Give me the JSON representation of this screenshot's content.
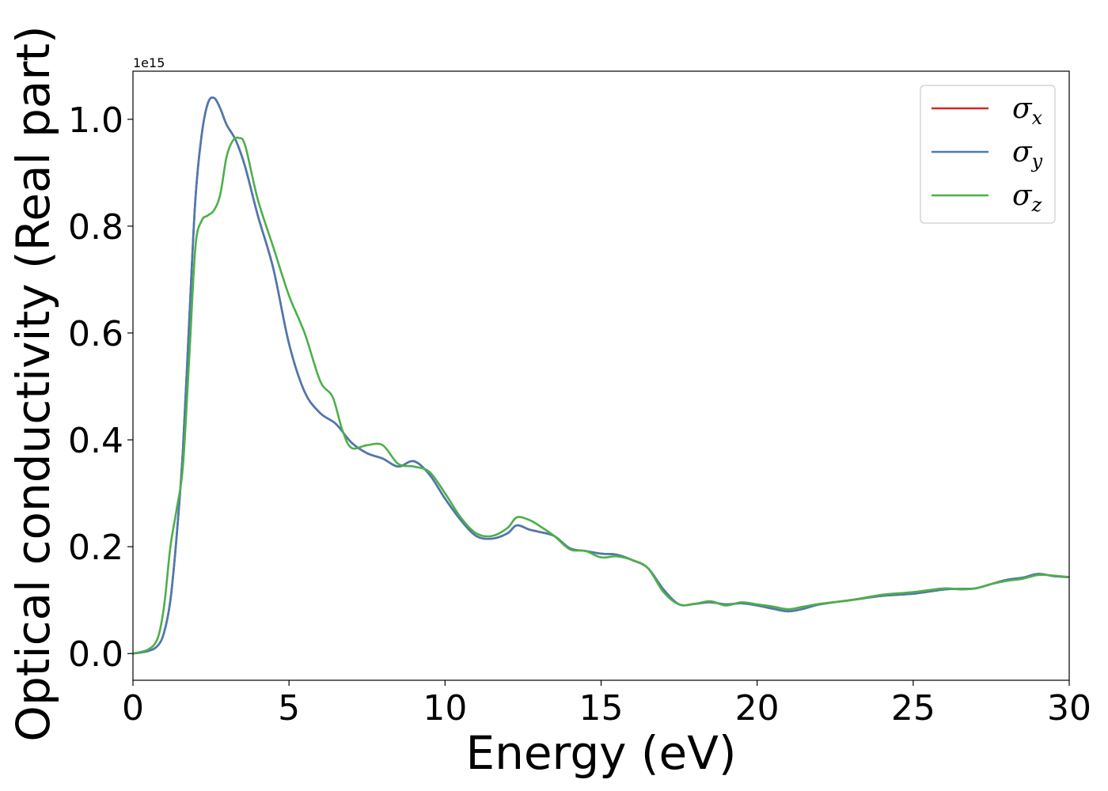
{
  "chart_data": {
    "type": "line",
    "xlabel": "Energy (eV)",
    "ylabel": "Optical conductivity (Real part)",
    "y_offset_label": "1e15",
    "xlim": [
      0,
      30
    ],
    "ylim": [
      -0.05,
      1.09
    ],
    "xticks": [
      0,
      5,
      10,
      15,
      20,
      25,
      30
    ],
    "xtick_labels": [
      "0",
      "5",
      "10",
      "15",
      "20",
      "25",
      "30"
    ],
    "yticks": [
      0.0,
      0.2,
      0.4,
      0.6,
      0.8,
      1.0
    ],
    "ytick_labels": [
      "0.0",
      "0.2",
      "0.4",
      "0.6",
      "0.8",
      "1.0"
    ],
    "grid": false,
    "legend_position": "top-right",
    "series": [
      {
        "name": "σx",
        "symbol": "σ",
        "subscript": "x",
        "color": "#d62728",
        "x": [
          0,
          0.5,
          0.8,
          1.0,
          1.2,
          1.4,
          1.6,
          1.8,
          2.0,
          2.2,
          2.4,
          2.6,
          2.8,
          3.0,
          3.3,
          3.6,
          4.0,
          4.5,
          5.0,
          5.5,
          6.0,
          6.5,
          7.0,
          7.5,
          8.0,
          8.5,
          9.0,
          9.5,
          10.0,
          10.5,
          11.0,
          11.5,
          12.0,
          12.3,
          12.7,
          13.0,
          13.5,
          14.0,
          14.5,
          15.0,
          15.5,
          16.0,
          16.5,
          17.0,
          17.5,
          18.0,
          18.5,
          19.0,
          19.5,
          20.0,
          20.5,
          21.0,
          21.5,
          22.0,
          23.0,
          24.0,
          25.0,
          26.0,
          26.5,
          27.0,
          27.5,
          28.0,
          28.5,
          29.0,
          29.5,
          30.0
        ],
        "y": [
          0.0,
          0.005,
          0.015,
          0.04,
          0.1,
          0.22,
          0.38,
          0.62,
          0.85,
          0.97,
          1.03,
          1.04,
          1.02,
          0.99,
          0.96,
          0.91,
          0.82,
          0.72,
          0.58,
          0.49,
          0.45,
          0.43,
          0.395,
          0.375,
          0.365,
          0.35,
          0.36,
          0.335,
          0.29,
          0.25,
          0.22,
          0.215,
          0.225,
          0.24,
          0.232,
          0.228,
          0.22,
          0.197,
          0.192,
          0.187,
          0.185,
          0.175,
          0.16,
          0.12,
          0.092,
          0.093,
          0.096,
          0.092,
          0.094,
          0.09,
          0.084,
          0.079,
          0.084,
          0.092,
          0.1,
          0.108,
          0.112,
          0.12,
          0.121,
          0.122,
          0.13,
          0.138,
          0.142,
          0.149,
          0.145,
          0.143
        ]
      },
      {
        "name": "σy",
        "symbol": "σ",
        "subscript": "y",
        "color": "#4a7ab0",
        "x": [
          0,
          0.5,
          0.8,
          1.0,
          1.2,
          1.4,
          1.6,
          1.8,
          2.0,
          2.2,
          2.4,
          2.6,
          2.8,
          3.0,
          3.3,
          3.6,
          4.0,
          4.5,
          5.0,
          5.5,
          6.0,
          6.5,
          7.0,
          7.5,
          8.0,
          8.5,
          9.0,
          9.5,
          10.0,
          10.5,
          11.0,
          11.5,
          12.0,
          12.3,
          12.7,
          13.0,
          13.5,
          14.0,
          14.5,
          15.0,
          15.5,
          16.0,
          16.5,
          17.0,
          17.5,
          18.0,
          18.5,
          19.0,
          19.5,
          20.0,
          20.5,
          21.0,
          21.5,
          22.0,
          23.0,
          24.0,
          25.0,
          26.0,
          26.5,
          27.0,
          27.5,
          28.0,
          28.5,
          29.0,
          29.5,
          30.0
        ],
        "y": [
          0.0,
          0.005,
          0.015,
          0.04,
          0.1,
          0.22,
          0.38,
          0.62,
          0.85,
          0.97,
          1.03,
          1.04,
          1.02,
          0.99,
          0.96,
          0.91,
          0.82,
          0.72,
          0.58,
          0.49,
          0.45,
          0.43,
          0.395,
          0.375,
          0.365,
          0.35,
          0.36,
          0.335,
          0.29,
          0.25,
          0.22,
          0.215,
          0.225,
          0.24,
          0.232,
          0.228,
          0.22,
          0.197,
          0.192,
          0.187,
          0.185,
          0.175,
          0.16,
          0.12,
          0.092,
          0.093,
          0.096,
          0.092,
          0.094,
          0.09,
          0.084,
          0.079,
          0.084,
          0.092,
          0.1,
          0.108,
          0.112,
          0.12,
          0.121,
          0.122,
          0.13,
          0.138,
          0.142,
          0.149,
          0.145,
          0.143
        ]
      },
      {
        "name": "σz",
        "symbol": "σ",
        "subscript": "z",
        "color": "#4daf4a",
        "x": [
          0,
          0.5,
          0.8,
          1.0,
          1.2,
          1.4,
          1.6,
          1.8,
          2.0,
          2.2,
          2.4,
          2.6,
          2.8,
          3.0,
          3.2,
          3.4,
          3.6,
          4.0,
          4.5,
          5.0,
          5.5,
          6.0,
          6.4,
          6.7,
          7.0,
          7.5,
          8.0,
          8.5,
          9.0,
          9.5,
          10.0,
          10.5,
          11.0,
          11.5,
          12.0,
          12.3,
          12.7,
          13.0,
          13.5,
          14.0,
          14.5,
          15.0,
          15.5,
          16.0,
          16.5,
          17.0,
          17.5,
          18.0,
          18.5,
          19.0,
          19.5,
          20.0,
          20.5,
          21.0,
          21.5,
          22.0,
          23.0,
          24.0,
          25.0,
          26.0,
          26.5,
          27.0,
          27.5,
          28.0,
          28.5,
          29.0,
          29.5,
          30.0
        ],
        "y": [
          0.0,
          0.008,
          0.03,
          0.09,
          0.2,
          0.27,
          0.35,
          0.55,
          0.76,
          0.81,
          0.82,
          0.83,
          0.86,
          0.93,
          0.96,
          0.965,
          0.95,
          0.85,
          0.76,
          0.67,
          0.6,
          0.51,
          0.48,
          0.42,
          0.385,
          0.39,
          0.39,
          0.355,
          0.35,
          0.34,
          0.3,
          0.255,
          0.225,
          0.22,
          0.235,
          0.255,
          0.25,
          0.24,
          0.22,
          0.195,
          0.192,
          0.18,
          0.182,
          0.175,
          0.16,
          0.115,
          0.092,
          0.093,
          0.098,
          0.09,
          0.096,
          0.092,
          0.088,
          0.083,
          0.088,
          0.093,
          0.1,
          0.11,
          0.115,
          0.122,
          0.12,
          0.122,
          0.13,
          0.136,
          0.14,
          0.147,
          0.146,
          0.143
        ]
      }
    ]
  }
}
